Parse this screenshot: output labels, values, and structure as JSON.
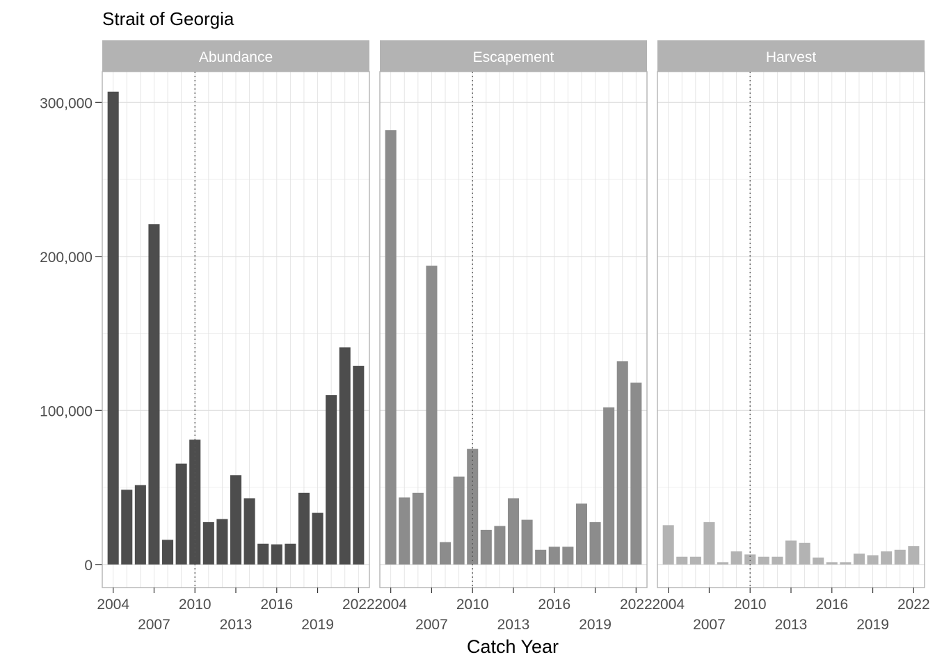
{
  "chart_data": {
    "type": "bar",
    "title": "Strait of Georgia",
    "xlabel": "Catch Year",
    "ylabel": "",
    "ylim": [
      -15000,
      320000
    ],
    "y_ticks": [
      0,
      100000,
      200000,
      300000
    ],
    "y_tick_labels": [
      "0",
      "100,000",
      "200,000",
      "300,000"
    ],
    "x_ticks": [
      2004,
      2007,
      2010,
      2013,
      2016,
      2019,
      2022
    ],
    "x_tick_labels": [
      "2004",
      "2007",
      "2010",
      "2013",
      "2016",
      "2019",
      "2022"
    ],
    "xlim": [
      2003.2,
      2022.8
    ],
    "reference_line_x": 2010,
    "grid": true,
    "categories": [
      2004,
      2005,
      2006,
      2007,
      2008,
      2009,
      2010,
      2011,
      2012,
      2013,
      2014,
      2015,
      2016,
      2017,
      2018,
      2019,
      2020,
      2021,
      2022
    ],
    "facets": [
      {
        "name": "Abundance",
        "color": "#4d4d4d",
        "values": [
          307000,
          48500,
          51500,
          221000,
          16000,
          65500,
          81000,
          27500,
          29500,
          58000,
          43000,
          13500,
          13000,
          13500,
          46500,
          33500,
          110000,
          141000,
          129000
        ]
      },
      {
        "name": "Escapement",
        "color": "#8c8c8c",
        "values": [
          282000,
          43500,
          46500,
          194000,
          14500,
          57000,
          75000,
          22500,
          25000,
          43000,
          29000,
          9500,
          11500,
          11500,
          39500,
          27500,
          102000,
          132000,
          118000
        ]
      },
      {
        "name": "Harvest",
        "color": "#b3b3b3",
        "values": [
          25500,
          5000,
          5000,
          27500,
          1500,
          8500,
          6500,
          5000,
          5000,
          15500,
          14000,
          4500,
          1500,
          1500,
          7000,
          6000,
          8500,
          9500,
          12000
        ]
      }
    ]
  }
}
